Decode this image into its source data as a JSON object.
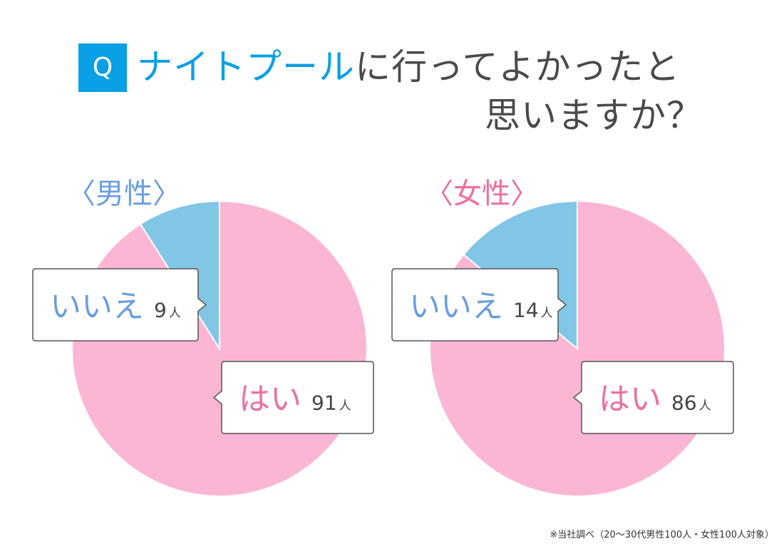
{
  "title": {
    "badge": "Q",
    "line1_highlight": "ナイトプール",
    "line1_rest": "に行ってよかったと",
    "line2": "思いますか？"
  },
  "colors": {
    "accent": "#0aa0e6",
    "yes": "#fbb6d6",
    "no": "#82c6e6",
    "male_label": "#6a9ee0",
    "female_label": "#ec6fa3",
    "yes_text": "#ec6fa3",
    "no_text": "#6a9ee0"
  },
  "chart_data": [
    {
      "type": "pie",
      "title": "〈男性〉",
      "slices": [
        {
          "label": "はい",
          "value": 91,
          "unit": "人"
        },
        {
          "label": "いいえ",
          "value": 9,
          "unit": "人"
        }
      ]
    },
    {
      "type": "pie",
      "title": "〈女性〉",
      "slices": [
        {
          "label": "はい",
          "value": 86,
          "unit": "人"
        },
        {
          "label": "いいえ",
          "value": 14,
          "unit": "人"
        }
      ]
    }
  ],
  "footnote": "※当社調べ（20〜30代男性100人・女性100人対象）"
}
